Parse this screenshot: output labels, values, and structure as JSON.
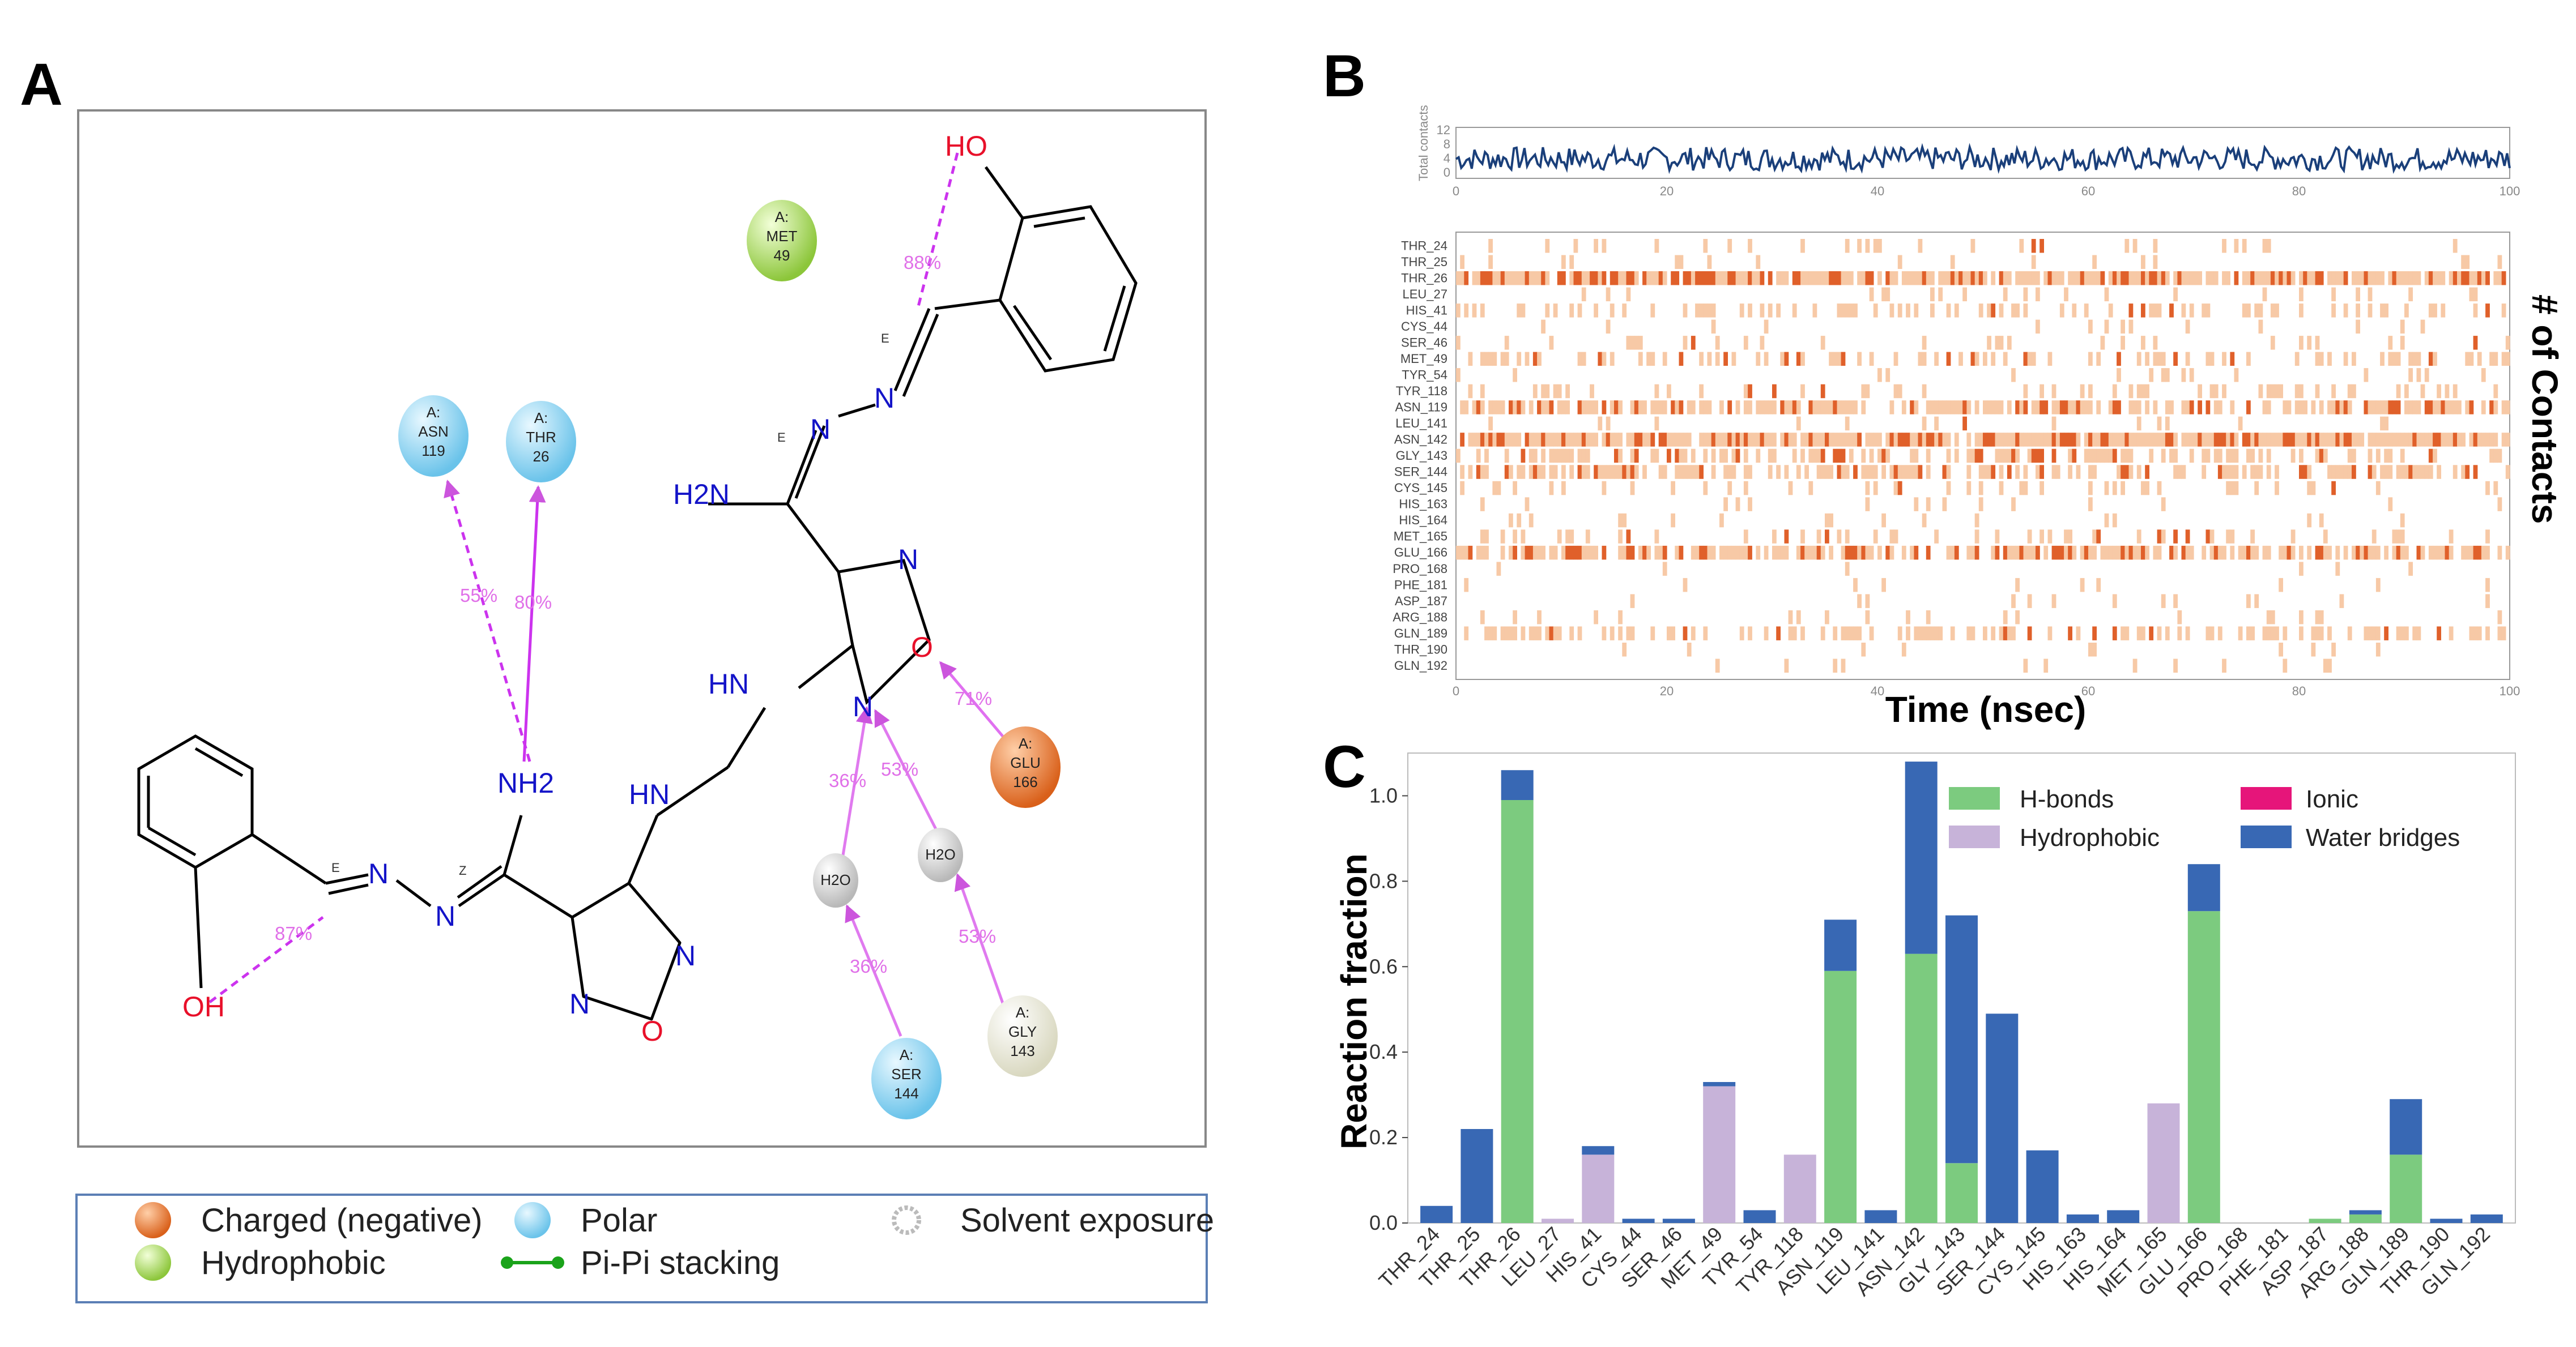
{
  "panels": {
    "a": {
      "label": "A",
      "atoms": {
        "ho": "HO",
        "oh": "OH",
        "h2n": "H2N",
        "nh2": "NH2",
        "hn1": "HN",
        "hn2": "HN",
        "n": "N",
        "o": "O",
        "h2o": "H2O"
      },
      "stereo": {
        "e": "E",
        "z": "Z"
      },
      "residues": [
        {
          "id": "met49",
          "chain": "A:",
          "name": "MET",
          "num": "49",
          "type": "hydrophobic"
        },
        {
          "id": "asn119",
          "chain": "A:",
          "name": "ASN",
          "num": "119",
          "type": "polar"
        },
        {
          "id": "thr26",
          "chain": "A:",
          "name": "THR",
          "num": "26",
          "type": "polar"
        },
        {
          "id": "glu166",
          "chain": "A:",
          "name": "GLU",
          "num": "166",
          "type": "charged"
        },
        {
          "id": "ser144",
          "chain": "A:",
          "name": "SER",
          "num": "144",
          "type": "polar"
        },
        {
          "id": "gly143",
          "chain": "A:",
          "name": "GLY",
          "num": "143",
          "type": "glycine"
        }
      ],
      "interactions": [
        "88%",
        "55%",
        "80%",
        "71%",
        "36%",
        "53%",
        "36%",
        "53%",
        "87%"
      ],
      "legend": [
        "Charged (negative)",
        "Polar",
        "Solvent exposure",
        "Hydrophobic",
        "Pi-Pi stacking"
      ]
    },
    "b": {
      "label": "B",
      "top_ylabel": "Total contacts",
      "top_yticks": [
        "12",
        "8",
        "4",
        "0"
      ],
      "xticks": [
        "0",
        "20",
        "40",
        "60",
        "80",
        "100"
      ],
      "xlabel": "Time (nsec)",
      "ylabel_right": "# of Contacts",
      "residues": [
        "THR_24",
        "THR_25",
        "THR_26",
        "LEU_27",
        "HIS_41",
        "CYS_44",
        "SER_46",
        "MET_49",
        "TYR_54",
        "TYR_118",
        "ASN_119",
        "LEU_141",
        "ASN_142",
        "GLY_143",
        "SER_144",
        "CYS_145",
        "HIS_163",
        "HIS_164",
        "MET_165",
        "GLU_166",
        "PRO_168",
        "PHE_181",
        "ASP_187",
        "ARG_188",
        "GLN_189",
        "THR_190",
        "GLN_192"
      ],
      "row_density": [
        0.1,
        0.08,
        0.85,
        0.1,
        0.3,
        0.05,
        0.1,
        0.3,
        0.06,
        0.2,
        0.65,
        0.05,
        0.9,
        0.45,
        0.55,
        0.15,
        0.05,
        0.08,
        0.25,
        0.75,
        0.03,
        0.04,
        0.05,
        0.06,
        0.4,
        0.06,
        0.05
      ],
      "colors": {
        "line": "#1a3f7a",
        "heat_light": "#f7c9a6",
        "heat_dark": "#e0602a"
      }
    },
    "c": {
      "label": "C",
      "legend": [
        "H-bonds",
        "Ionic",
        "Hydrophobic",
        "Water bridges"
      ]
    }
  },
  "chart_data": {
    "type": "bar",
    "stacked": true,
    "ylabel": "Reaction fraction",
    "ylim": [
      0,
      1.1
    ],
    "yticks": [
      "0.0",
      "0.2",
      "0.4",
      "0.6",
      "0.8",
      "1.0"
    ],
    "categories": [
      "THR_24",
      "THR_25",
      "THR_26",
      "LEU_27",
      "HIS_41",
      "CYS_44",
      "SER_46",
      "MET_49",
      "TYR_54",
      "TYR_118",
      "ASN_119",
      "LEU_141",
      "ASN_142",
      "GLY_143",
      "SER_144",
      "CYS_145",
      "HIS_163",
      "HIS_164",
      "MET_165",
      "GLU_166",
      "PRO_168",
      "PHE_181",
      "ASP_187",
      "ARG_188",
      "GLN_189",
      "THR_190",
      "GLN_192"
    ],
    "series": [
      {
        "name": "H-bonds",
        "color": "#7ccb7f",
        "values": [
          0,
          0,
          0.99,
          0,
          0,
          0,
          0,
          0,
          0,
          0,
          0.59,
          0,
          0.63,
          0.14,
          0,
          0,
          0,
          0,
          0,
          0.73,
          0,
          0,
          0.01,
          0.02,
          0.16,
          0,
          0
        ]
      },
      {
        "name": "Hydrophobic",
        "color": "#c7b3d9",
        "values": [
          0,
          0,
          0,
          0.01,
          0.16,
          0,
          0,
          0.32,
          0,
          0.16,
          0,
          0,
          0,
          0,
          0,
          0,
          0,
          0,
          0.28,
          0,
          0,
          0,
          0,
          0,
          0,
          0,
          0
        ]
      },
      {
        "name": "Ionic",
        "color": "#e6157a",
        "values": [
          0,
          0,
          0,
          0,
          0,
          0,
          0,
          0,
          0,
          0,
          0,
          0,
          0,
          0,
          0,
          0,
          0,
          0,
          0,
          0,
          0,
          0,
          0,
          0,
          0,
          0,
          0
        ]
      },
      {
        "name": "Water bridges",
        "color": "#3868b4",
        "values": [
          0.04,
          0.22,
          0.07,
          0,
          0.02,
          0.01,
          0.01,
          0.01,
          0.03,
          0,
          0.12,
          0.03,
          0.45,
          0.58,
          0.49,
          0.17,
          0.02,
          0.03,
          0,
          0.11,
          0,
          0,
          0,
          0.01,
          0.13,
          0.01,
          0.02
        ]
      }
    ]
  }
}
